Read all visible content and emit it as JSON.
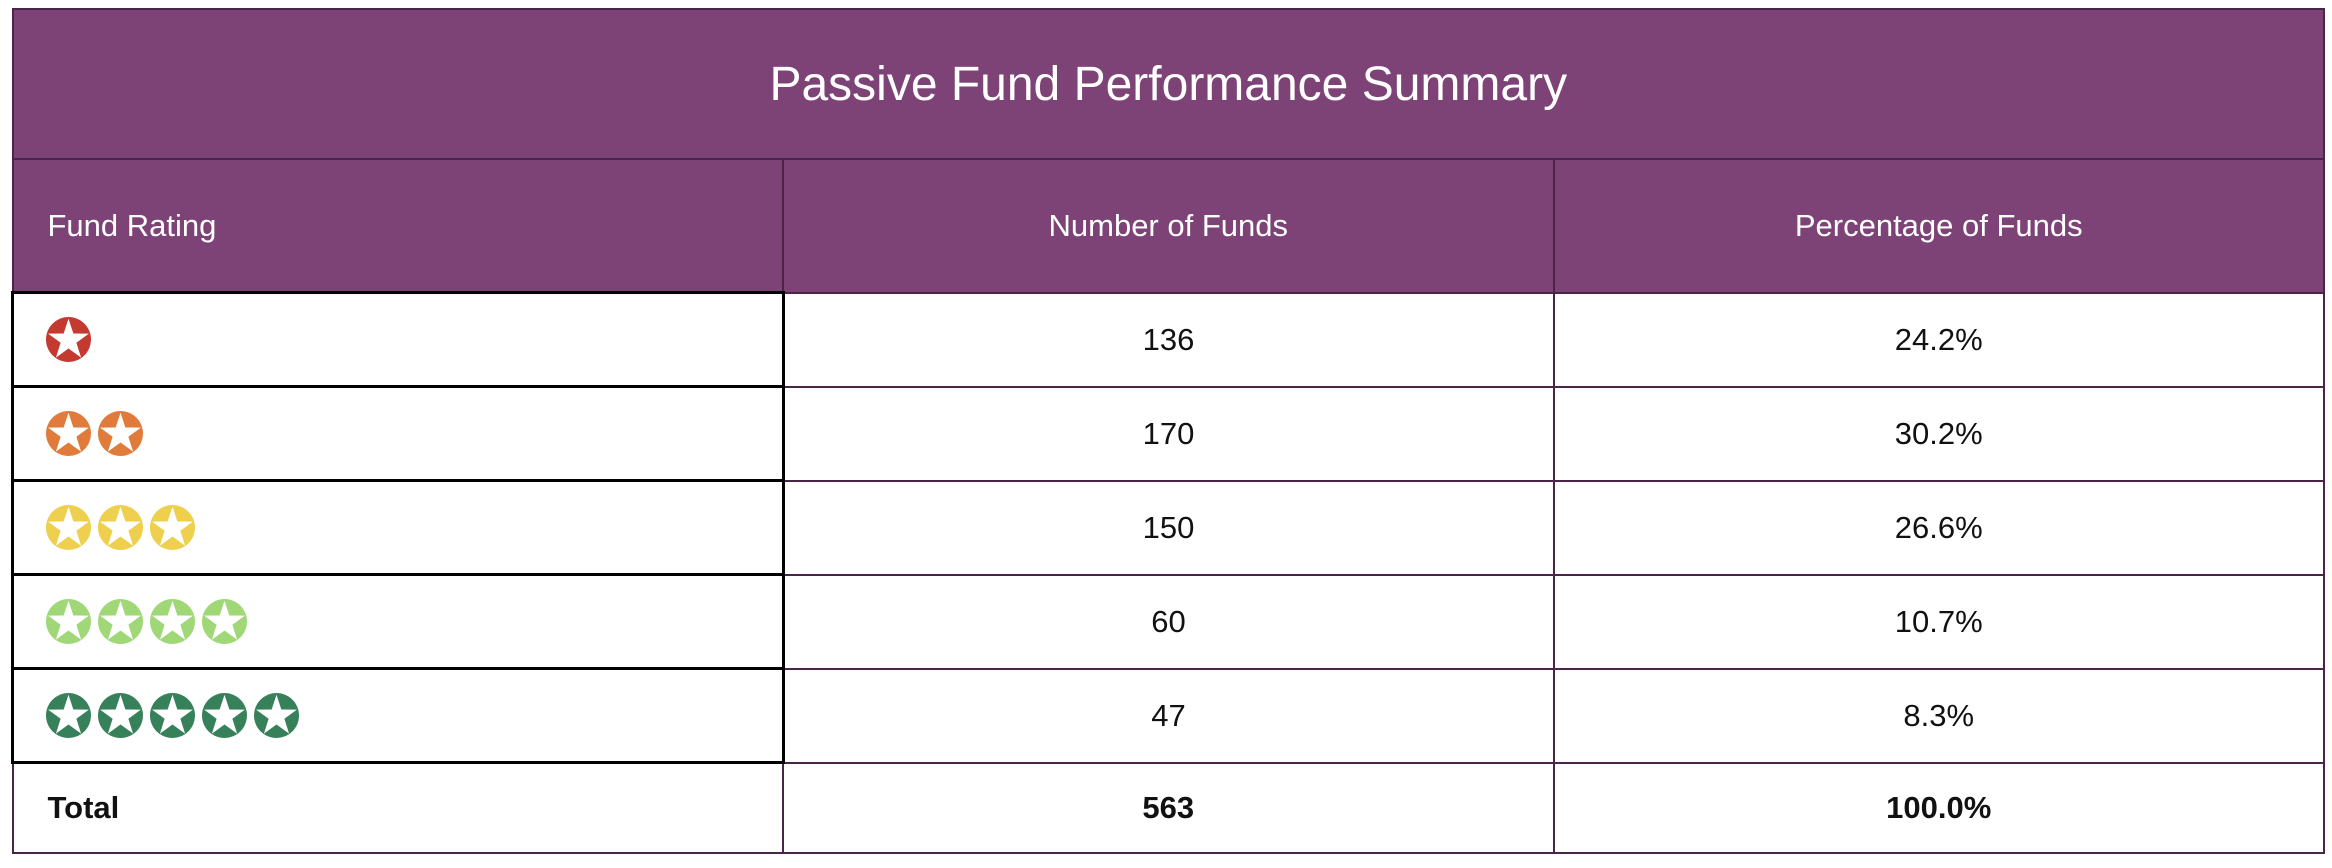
{
  "title": "Passive Fund Performance Summary",
  "columns": [
    "Fund Rating",
    "Number of Funds",
    "Percentage of Funds"
  ],
  "rows": [
    {
      "stars": 1,
      "rating_label": "1 star",
      "star_color": "#C43A31",
      "count": "136",
      "pct": "24.2%"
    },
    {
      "stars": 2,
      "rating_label": "2 stars",
      "star_color": "#E07B3C",
      "count": "170",
      "pct": "30.2%"
    },
    {
      "stars": 3,
      "rating_label": "3 stars",
      "star_color": "#EFD04E",
      "count": "150",
      "pct": "26.6%"
    },
    {
      "stars": 4,
      "rating_label": "4 stars",
      "star_color": "#A0D878",
      "count": "60",
      "pct": "10.7%"
    },
    {
      "stars": 5,
      "rating_label": "5 stars",
      "star_color": "#37815A",
      "count": "47",
      "pct": "8.3%"
    }
  ],
  "total": {
    "label": "Total",
    "count": "563",
    "pct": "100.0%"
  },
  "colors": {
    "header_bg": "#7D4377",
    "border_purple": "#4A2548",
    "border_black": "#000000",
    "header_text": "#FFFFFF",
    "body_text": "#111111"
  },
  "chart_data": {
    "type": "table",
    "title": "Passive Fund Performance Summary",
    "columns": [
      "Fund Rating",
      "Number of Funds",
      "Percentage of Funds"
    ],
    "rows": [
      {
        "fund_rating_stars": 1,
        "number_of_funds": 136,
        "percentage_of_funds": 24.2
      },
      {
        "fund_rating_stars": 2,
        "number_of_funds": 170,
        "percentage_of_funds": 30.2
      },
      {
        "fund_rating_stars": 3,
        "number_of_funds": 150,
        "percentage_of_funds": 26.6
      },
      {
        "fund_rating_stars": 4,
        "number_of_funds": 60,
        "percentage_of_funds": 10.7
      },
      {
        "fund_rating_stars": 5,
        "number_of_funds": 47,
        "percentage_of_funds": 8.3
      }
    ],
    "total": {
      "number_of_funds": 563,
      "percentage_of_funds": 100.0
    }
  }
}
